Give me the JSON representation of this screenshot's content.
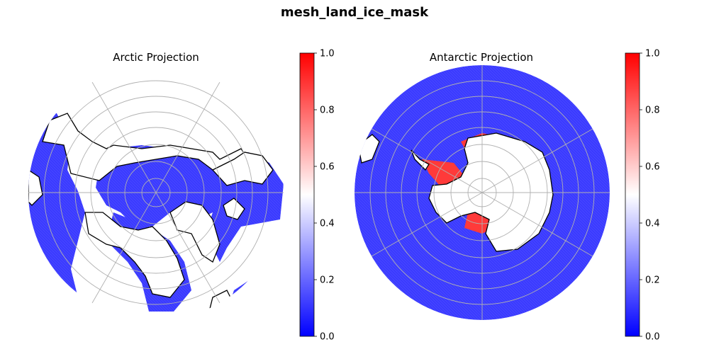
{
  "figure": {
    "title": "mesh_land_ice_mask"
  },
  "panels": [
    {
      "title": "Arctic Projection"
    },
    {
      "title": "Antarctic Projection"
    }
  ],
  "colorbar": {
    "colormap": "bwr",
    "ticks": [
      "0.0",
      "0.2",
      "0.4",
      "0.6",
      "0.8",
      "1.0"
    ],
    "range": [
      0.0,
      1.0
    ],
    "colors": {
      "low": "#0000ff",
      "mid": "#ffffff",
      "high": "#ff0000"
    }
  },
  "map_colors": {
    "ocean_value_color": "#3a3aff",
    "land_ice_color": "#ff3333",
    "land_color": "#ffffff",
    "coastline": "#000000",
    "gridline": "#b0b0b0"
  }
}
